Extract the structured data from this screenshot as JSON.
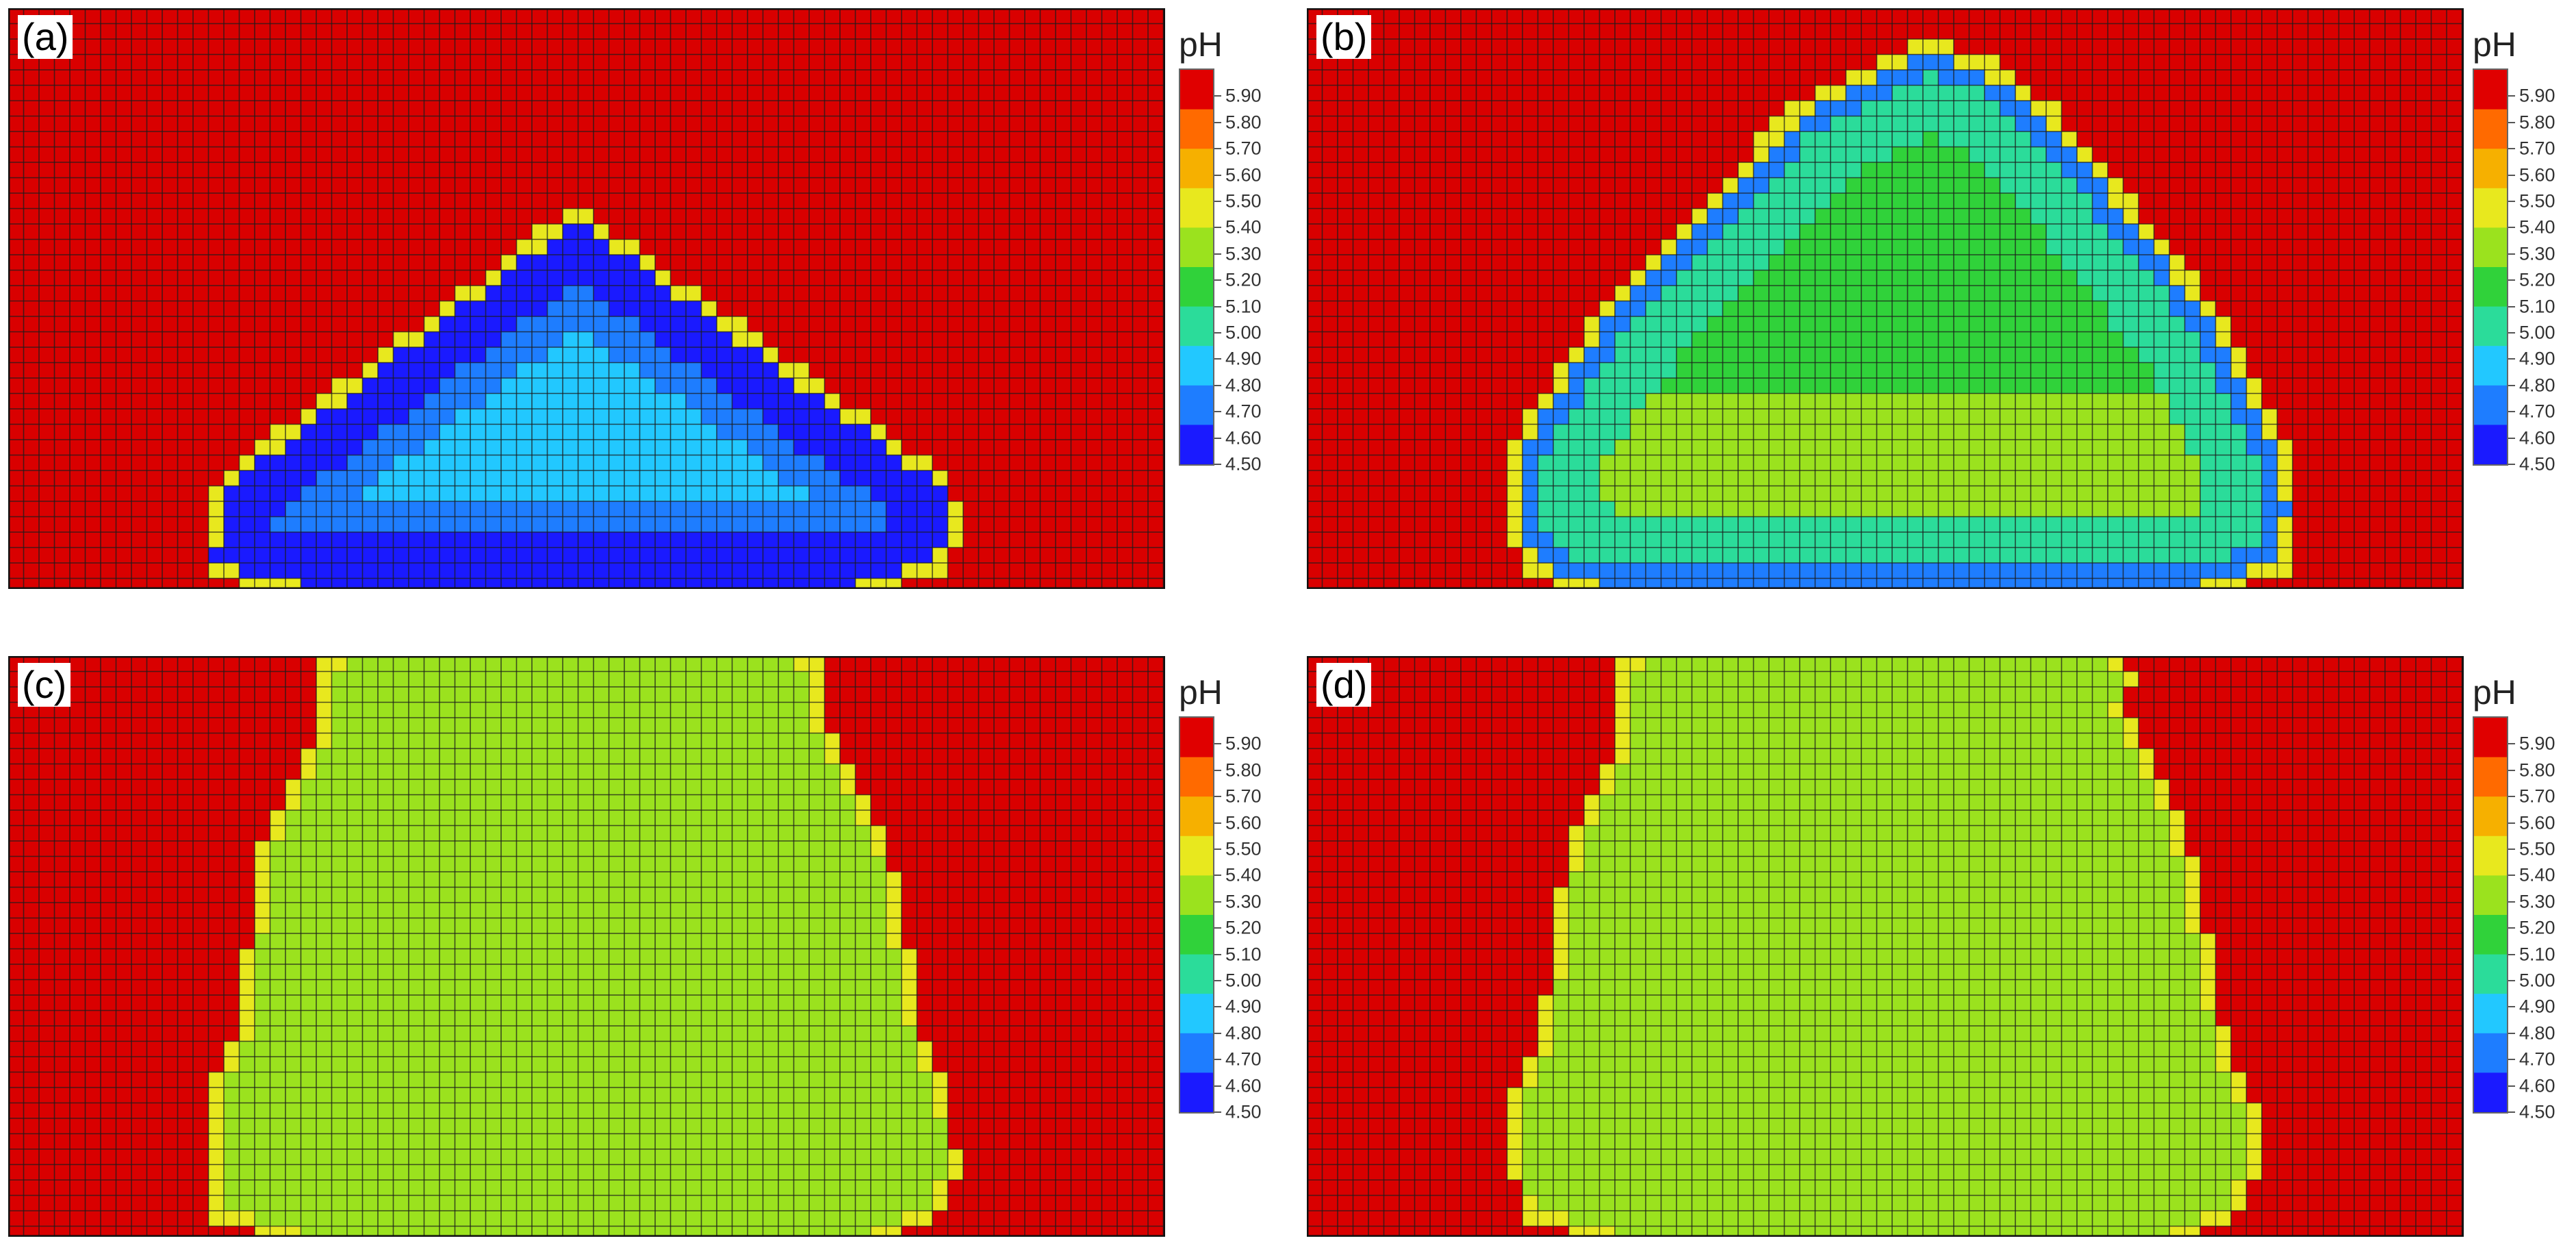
{
  "legend_title": "pH",
  "colorbar_ticks": [
    "5.90",
    "5.80",
    "5.70",
    "5.60",
    "5.50",
    "5.40",
    "5.30",
    "5.20",
    "5.10",
    "5.00",
    "4.90",
    "4.80",
    "4.70",
    "4.60",
    "4.50"
  ],
  "colors": {
    "background_max": "#d90000",
    "grid_line": "#1c1c1c",
    "scale": [
      "#1a1aff",
      "#1e7dff",
      "#22c8ff",
      "#2bdc9a",
      "#30d23a",
      "#9be21e",
      "#e8e81e",
      "#f6b000",
      "#ff6a00",
      "#e00000"
    ]
  },
  "panels": [
    {
      "label": "(a)",
      "region": "dome with pointed apex",
      "interior_pH": 4.8,
      "edge_pH": 4.5
    },
    {
      "label": "(b)",
      "region": "rounded dome",
      "interior_pH": 5.15,
      "edge_pH": 4.8
    },
    {
      "label": "(c)",
      "region": "vase-shaped region",
      "interior_pH": 5.2,
      "edge_pH": 5.2
    },
    {
      "label": "(d)",
      "region": "vase-shaped region",
      "interior_pH": 5.2,
      "edge_pH": 5.2
    }
  ]
}
